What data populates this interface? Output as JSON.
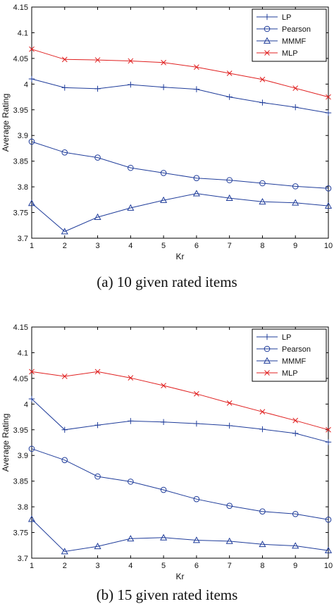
{
  "chart_data": [
    {
      "type": "line",
      "title": "",
      "caption": "(a)  10 given rated items",
      "xlabel": "Kr",
      "ylabel": "Average Rating",
      "x": [
        1,
        2,
        3,
        4,
        5,
        6,
        7,
        8,
        9,
        10
      ],
      "xlim": [
        1,
        10
      ],
      "ylim": [
        3.7,
        4.15
      ],
      "xticks": [
        "1",
        "2",
        "3",
        "4",
        "5",
        "6",
        "7",
        "8",
        "9",
        "10"
      ],
      "yticks": [
        "3.7",
        "3.75",
        "3.8",
        "3.85",
        "3.9",
        "3.95",
        "4",
        "4.05",
        "4.1",
        "4.15"
      ],
      "grid": false,
      "legend": "top-right",
      "series": [
        {
          "name": "LP",
          "marker": "plus",
          "color": "#1f3c9a",
          "values": [
            4.01,
            3.993,
            3.991,
            3.999,
            3.994,
            3.99,
            3.975,
            3.964,
            3.955,
            3.944
          ]
        },
        {
          "name": "Pearson",
          "marker": "circle",
          "color": "#1f3c9a",
          "values": [
            3.888,
            3.867,
            3.857,
            3.837,
            3.827,
            3.817,
            3.813,
            3.807,
            3.801,
            3.797
          ]
        },
        {
          "name": "MMMF",
          "marker": "triangle",
          "color": "#1f3c9a",
          "values": [
            3.768,
            3.713,
            3.741,
            3.759,
            3.774,
            3.787,
            3.778,
            3.771,
            3.769,
            3.763
          ]
        },
        {
          "name": "MLP",
          "marker": "x",
          "color": "#e02020",
          "values": [
            4.068,
            4.048,
            4.047,
            4.045,
            4.042,
            4.033,
            4.021,
            4.009,
            3.992,
            3.975
          ]
        }
      ]
    },
    {
      "type": "line",
      "title": "",
      "caption": "(b)  15 given rated items",
      "xlabel": "Kr",
      "ylabel": "Average Rating",
      "x": [
        1,
        2,
        3,
        4,
        5,
        6,
        7,
        8,
        9,
        10
      ],
      "xlim": [
        1,
        10
      ],
      "ylim": [
        3.7,
        4.15
      ],
      "xticks": [
        "1",
        "2",
        "3",
        "4",
        "5",
        "6",
        "7",
        "8",
        "9",
        "10"
      ],
      "yticks": [
        "3.7",
        "3.75",
        "3.8",
        "3.85",
        "3.9",
        "3.95",
        "4",
        "4.05",
        "4.1",
        "4.15"
      ],
      "grid": false,
      "legend": "top-right",
      "series": [
        {
          "name": "LP",
          "marker": "plus",
          "color": "#1f3c9a",
          "values": [
            4.01,
            3.95,
            3.959,
            3.967,
            3.965,
            3.962,
            3.958,
            3.951,
            3.943,
            3.926
          ]
        },
        {
          "name": "Pearson",
          "marker": "circle",
          "color": "#1f3c9a",
          "values": [
            3.913,
            3.891,
            3.859,
            3.849,
            3.833,
            3.815,
            3.802,
            3.791,
            3.786,
            3.775
          ]
        },
        {
          "name": "MMMF",
          "marker": "triangle",
          "color": "#1f3c9a",
          "values": [
            3.776,
            3.713,
            3.723,
            3.738,
            3.74,
            3.735,
            3.733,
            3.727,
            3.724,
            3.715
          ]
        },
        {
          "name": "MLP",
          "marker": "x",
          "color": "#e02020",
          "values": [
            4.063,
            4.054,
            4.063,
            4.051,
            4.036,
            4.02,
            4.002,
            3.985,
            3.968,
            3.95
          ]
        }
      ]
    }
  ]
}
